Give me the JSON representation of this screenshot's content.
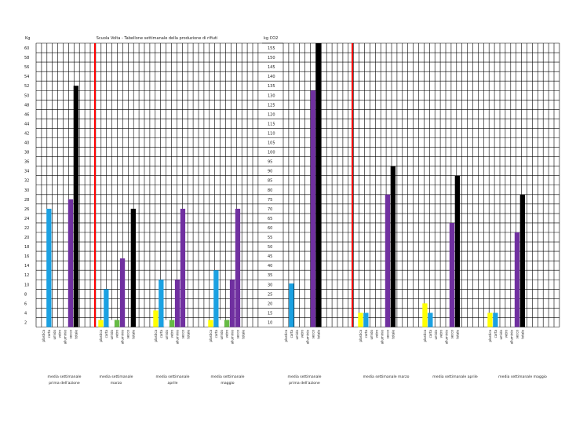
{
  "chart_data": {
    "type": "bar",
    "title": "Scuola Volta - Tabellone settimanale della produzione di rifiuti",
    "left_unit": "Kg",
    "right_unit": "kg CO2",
    "left_axis_ticks": [
      2,
      4,
      6,
      8,
      10,
      12,
      14,
      16,
      18,
      20,
      22,
      24,
      26,
      28,
      30,
      32,
      34,
      36,
      38,
      40,
      42,
      44,
      46,
      48,
      50,
      52,
      54,
      56,
      58,
      60
    ],
    "right_axis_ticks": [
      10,
      15,
      20,
      25,
      30,
      35,
      40,
      45,
      50,
      55,
      60,
      65,
      70,
      75,
      80,
      85,
      90,
      95,
      100,
      105,
      110,
      115,
      120,
      125,
      130,
      135,
      140,
      145,
      150,
      155
    ],
    "categories": [
      "plastica",
      "carta",
      "umido",
      "vetro",
      "alluminio",
      "secco",
      "totale"
    ],
    "colors": {
      "plastica": "#ffff00",
      "carta": "#1ba1e2",
      "umido": "#ffffff",
      "vetro": "#66bb44",
      "alluminio": "#7030a0",
      "secco": "#7030a0",
      "totale": "#000000"
    },
    "kg_groups": [
      {
        "label": "media settimanale prima dell'azione",
        "values": [
          0,
          25,
          0,
          0,
          0,
          27,
          51
        ]
      },
      {
        "label": "media settimanale marzo",
        "values": [
          1.5,
          8,
          1.5,
          1.5,
          14.5,
          0,
          25
        ]
      },
      {
        "label": "media settimanale aprile",
        "values": [
          3.5,
          10,
          1.5,
          1.5,
          10,
          25,
          0
        ]
      },
      {
        "label": "media settimanale maggio",
        "values": [
          1.5,
          12,
          1.5,
          1.5,
          10,
          25,
          0
        ]
      }
    ],
    "co2_groups": [
      {
        "label": "media settimanale prima dell'azione",
        "values": [
          0,
          28,
          0,
          0,
          0,
          130,
          155
        ]
      },
      {
        "label": "media settimanale marzo",
        "values": [
          12.5,
          12.5,
          0,
          0,
          0,
          75,
          90
        ]
      },
      {
        "label": "media settimanale aprile",
        "values": [
          17.5,
          12.5,
          0,
          0,
          0,
          60,
          85
        ]
      },
      {
        "label": "media settimanale maggio",
        "values": [
          12.5,
          12.5,
          0,
          0,
          0,
          55,
          75
        ]
      }
    ]
  }
}
